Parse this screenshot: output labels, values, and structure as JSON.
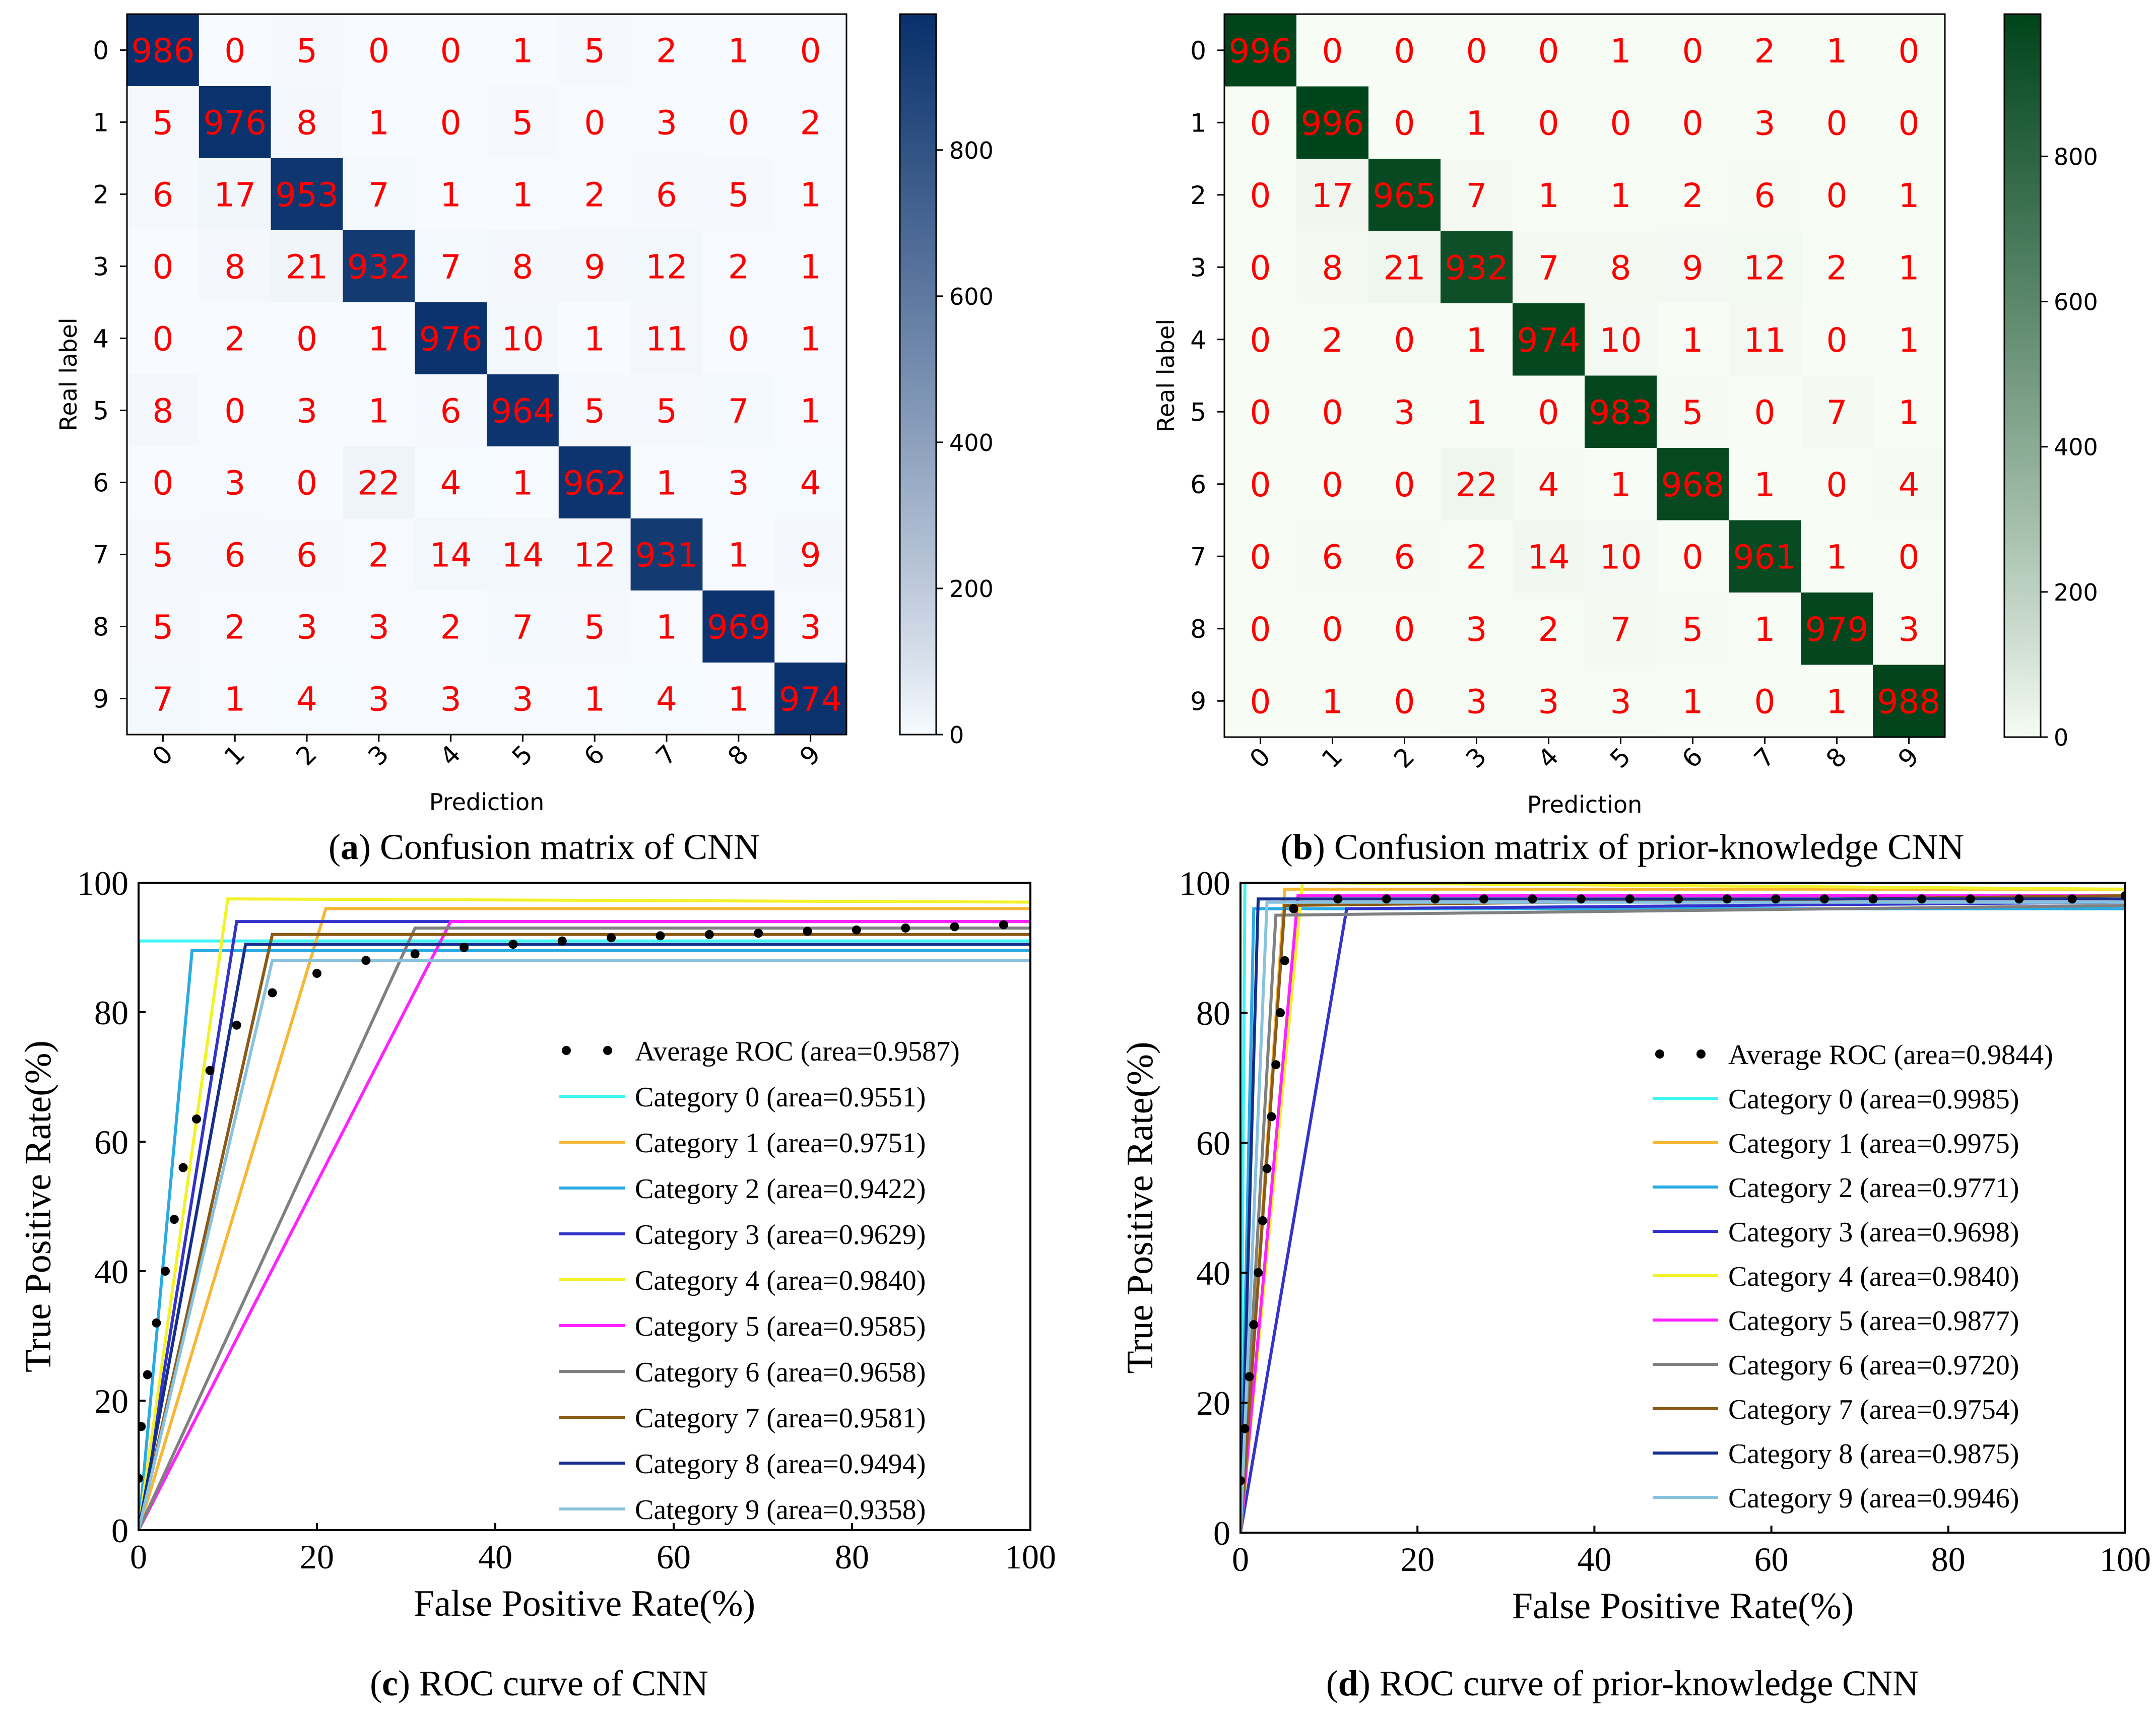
{
  "figure_captions": {
    "a": {
      "letter": "a",
      "text": " Confusion matrix of CNN"
    },
    "b": {
      "letter": "b",
      "text": " Confusion matrix of prior-knowledge CNN"
    },
    "c": {
      "letter": "c",
      "text": " ROC curve of CNN"
    },
    "d": {
      "letter": "d",
      "text": " ROC curve of prior-knowledge CNN"
    }
  },
  "chart_data": [
    {
      "id": "a",
      "type": "heatmap",
      "title": "Confusion matrix of CNN",
      "xlabel": "Prediction",
      "ylabel": "Real label",
      "categories": [
        "0",
        "1",
        "2",
        "3",
        "4",
        "5",
        "6",
        "7",
        "8",
        "9"
      ],
      "colormap": {
        "low": "#f7fbff",
        "high": "#08306b"
      },
      "colorbar_ticks": [
        0,
        200,
        400,
        600,
        800
      ],
      "vmin": 0,
      "vmax": 986,
      "cell_text_color": "#ff0000",
      "matrix": [
        [
          986,
          0,
          5,
          0,
          0,
          1,
          5,
          2,
          1,
          0
        ],
        [
          5,
          976,
          8,
          1,
          0,
          5,
          0,
          3,
          0,
          2
        ],
        [
          6,
          17,
          953,
          7,
          1,
          1,
          2,
          6,
          5,
          1
        ],
        [
          0,
          8,
          21,
          932,
          7,
          8,
          9,
          12,
          2,
          1
        ],
        [
          0,
          2,
          0,
          1,
          976,
          10,
          1,
          11,
          0,
          1
        ],
        [
          8,
          0,
          3,
          1,
          6,
          964,
          5,
          5,
          7,
          1
        ],
        [
          0,
          3,
          0,
          22,
          4,
          1,
          962,
          1,
          3,
          4
        ],
        [
          5,
          6,
          6,
          2,
          14,
          14,
          12,
          931,
          1,
          9
        ],
        [
          5,
          2,
          3,
          3,
          2,
          7,
          5,
          1,
          969,
          3
        ],
        [
          7,
          1,
          4,
          3,
          3,
          3,
          1,
          4,
          1,
          974
        ]
      ]
    },
    {
      "id": "b",
      "type": "heatmap",
      "title": "Confusion matrix of prior-knowledge CNN",
      "xlabel": "Prediction",
      "ylabel": "Real label",
      "categories": [
        "0",
        "1",
        "2",
        "3",
        "4",
        "5",
        "6",
        "7",
        "8",
        "9"
      ],
      "colormap": {
        "low": "#f7fcf5",
        "high": "#00441b"
      },
      "colorbar_ticks": [
        0,
        200,
        400,
        600,
        800
      ],
      "vmin": 0,
      "vmax": 996,
      "cell_text_color": "#ff0000",
      "matrix": [
        [
          996,
          0,
          0,
          0,
          0,
          1,
          0,
          2,
          1,
          0
        ],
        [
          0,
          996,
          0,
          1,
          0,
          0,
          0,
          3,
          0,
          0
        ],
        [
          0,
          17,
          965,
          7,
          1,
          1,
          2,
          6,
          0,
          1
        ],
        [
          0,
          8,
          21,
          932,
          7,
          8,
          9,
          12,
          2,
          1
        ],
        [
          0,
          2,
          0,
          1,
          974,
          10,
          1,
          11,
          0,
          1
        ],
        [
          0,
          0,
          3,
          1,
          0,
          983,
          5,
          0,
          7,
          1
        ],
        [
          0,
          0,
          0,
          22,
          4,
          1,
          968,
          1,
          0,
          4
        ],
        [
          0,
          6,
          6,
          2,
          14,
          10,
          0,
          961,
          1,
          0
        ],
        [
          0,
          0,
          0,
          3,
          2,
          7,
          5,
          1,
          979,
          3
        ],
        [
          0,
          1,
          0,
          3,
          3,
          3,
          1,
          0,
          1,
          988
        ]
      ]
    },
    {
      "id": "c",
      "type": "line",
      "title": "ROC curve of CNN",
      "xlabel": "False Positive Rate(%)",
      "ylabel": "True Positive Rate(%)",
      "xlim": [
        0,
        100
      ],
      "ylim": [
        0,
        100
      ],
      "ticks": [
        0,
        20,
        40,
        60,
        80,
        100
      ],
      "legend_location": "lower-right",
      "average": {
        "label": "Average ROC (area=0.9587)",
        "color": "#000000",
        "points": [
          [
            0,
            8
          ],
          [
            0.3,
            16
          ],
          [
            1,
            24
          ],
          [
            2,
            32
          ],
          [
            3,
            40
          ],
          [
            4,
            48
          ],
          [
            5,
            56
          ],
          [
            6.5,
            63.5
          ],
          [
            8,
            71
          ],
          [
            11,
            78
          ],
          [
            15,
            83
          ],
          [
            20,
            86
          ],
          [
            25.5,
            88
          ],
          [
            31,
            89
          ],
          [
            36.5,
            90
          ],
          [
            42,
            90.5
          ],
          [
            47.5,
            91
          ],
          [
            53,
            91.5
          ],
          [
            58.5,
            91.8
          ],
          [
            64,
            92
          ],
          [
            69.5,
            92.2
          ],
          [
            75,
            92.5
          ],
          [
            80.5,
            92.7
          ],
          [
            86,
            93
          ],
          [
            91.5,
            93.2
          ],
          [
            97,
            93.5
          ]
        ]
      },
      "series": [
        {
          "name": "Category 0",
          "label": "Category 0 (area=0.9551)",
          "color": "#3ff5f5",
          "points": [
            [
              0,
              0
            ],
            [
              0,
              91
            ],
            [
              100,
              91
            ]
          ]
        },
        {
          "name": "Category 1",
          "label": "Category 1 (area=0.9751)",
          "color": "#f7b733",
          "points": [
            [
              0,
              0
            ],
            [
              21,
              96
            ],
            [
              100,
              96
            ]
          ]
        },
        {
          "name": "Category 2",
          "label": "Category 2 (area=0.9422)",
          "color": "#29abe2",
          "points": [
            [
              0,
              0
            ],
            [
              6,
              89.5
            ],
            [
              100,
              89.5
            ]
          ]
        },
        {
          "name": "Category 3",
          "label": "Category 3 (area=0.9629)",
          "color": "#3333cc",
          "points": [
            [
              0,
              0
            ],
            [
              11,
              94
            ],
            [
              100,
              94
            ]
          ]
        },
        {
          "name": "Category 4",
          "label": "Category 4 (area=0.9840)",
          "color": "#f2f22a",
          "points": [
            [
              0,
              0
            ],
            [
              10,
              97.5
            ],
            [
              100,
              97
            ]
          ]
        },
        {
          "name": "Category 5",
          "label": "Category 5 (area=0.9585)",
          "color": "#ff22ff",
          "points": [
            [
              0,
              0
            ],
            [
              35,
              94
            ],
            [
              100,
              94
            ]
          ]
        },
        {
          "name": "Category 6",
          "label": "Category 6 (area=0.9658)",
          "color": "#808080",
          "points": [
            [
              0,
              0
            ],
            [
              31,
              93
            ],
            [
              100,
              93
            ]
          ]
        },
        {
          "name": "Category 7",
          "label": "Category 7 (area=0.9581)",
          "color": "#8b5a16",
          "points": [
            [
              0,
              0
            ],
            [
              15,
              92
            ],
            [
              100,
              92
            ]
          ]
        },
        {
          "name": "Category 8",
          "label": "Category 8 (area=0.9494)",
          "color": "#152d8c",
          "points": [
            [
              0,
              0
            ],
            [
              12,
              90.5
            ],
            [
              100,
              90.5
            ]
          ]
        },
        {
          "name": "Category 9",
          "label": "Category 9 (area=0.9358)",
          "color": "#88c3dd",
          "points": [
            [
              0,
              0
            ],
            [
              15,
              88
            ],
            [
              100,
              88
            ]
          ]
        }
      ]
    },
    {
      "id": "d",
      "type": "line",
      "title": "ROC curve of prior-knowledge CNN",
      "xlabel": "False Positive Rate(%)",
      "ylabel": "True Positive Rate(%)",
      "xlim": [
        0,
        100
      ],
      "ylim": [
        0,
        100
      ],
      "ticks": [
        0,
        20,
        40,
        60,
        80,
        100
      ],
      "legend_location": "lower-right",
      "average": {
        "label": "Average ROC (area=0.9844)",
        "color": "#000000",
        "points": [
          [
            0,
            8
          ],
          [
            0.5,
            16
          ],
          [
            1,
            24
          ],
          [
            1.5,
            32
          ],
          [
            2,
            40
          ],
          [
            2.5,
            48
          ],
          [
            3,
            56
          ],
          [
            3.5,
            64
          ],
          [
            4,
            72
          ],
          [
            4.5,
            80
          ],
          [
            5,
            88
          ],
          [
            6,
            96
          ],
          [
            11,
            97.5
          ],
          [
            16.5,
            97.5
          ],
          [
            22,
            97.5
          ],
          [
            27.5,
            97.5
          ],
          [
            33,
            97.5
          ],
          [
            38.5,
            97.5
          ],
          [
            44,
            97.5
          ],
          [
            49.5,
            97.5
          ],
          [
            55,
            97.5
          ],
          [
            60.5,
            97.5
          ],
          [
            66,
            97.5
          ],
          [
            71.5,
            97.5
          ],
          [
            77,
            97.5
          ],
          [
            82.5,
            97.5
          ],
          [
            88,
            97.5
          ],
          [
            94,
            97.5
          ],
          [
            100,
            98
          ]
        ]
      },
      "series": [
        {
          "name": "Category 0",
          "label": "Category 0 (area=0.9985)",
          "color": "#3ff5f5",
          "points": [
            [
              0,
              0
            ],
            [
              0.5,
              100
            ],
            [
              100,
              100
            ]
          ]
        },
        {
          "name": "Category 1",
          "label": "Category 1 (area=0.9975)",
          "color": "#f7b733",
          "points": [
            [
              0,
              0
            ],
            [
              5,
              99
            ],
            [
              100,
              99
            ]
          ]
        },
        {
          "name": "Category 2",
          "label": "Category 2 (area=0.9771)",
          "color": "#29abe2",
          "points": [
            [
              0,
              0
            ],
            [
              1.5,
              96
            ],
            [
              100,
              96
            ]
          ]
        },
        {
          "name": "Category 3",
          "label": "Category 3 (area=0.9698)",
          "color": "#3333cc",
          "points": [
            [
              0,
              0
            ],
            [
              12,
              96
            ],
            [
              100,
              97
            ]
          ]
        },
        {
          "name": "Category 4",
          "label": "Category 4 (area=0.9840)",
          "color": "#f2f22a",
          "points": [
            [
              0,
              0
            ],
            [
              7,
              100
            ],
            [
              100,
              99
            ]
          ]
        },
        {
          "name": "Category 5",
          "label": "Category 5 (area=0.9877)",
          "color": "#ff22ff",
          "points": [
            [
              0,
              0
            ],
            [
              6.5,
              98
            ],
            [
              100,
              98
            ]
          ]
        },
        {
          "name": "Category 6",
          "label": "Category 6 (area=0.9720)",
          "color": "#808080",
          "points": [
            [
              0,
              0
            ],
            [
              4,
              95
            ],
            [
              100,
              96.5
            ]
          ]
        },
        {
          "name": "Category 7",
          "label": "Category 7 (area=0.9754)",
          "color": "#8b5a16",
          "points": [
            [
              0,
              0
            ],
            [
              5,
              96.5
            ],
            [
              100,
              98
            ]
          ]
        },
        {
          "name": "Category 8",
          "label": "Category 8 (area=0.9875)",
          "color": "#152d8c",
          "points": [
            [
              0,
              0
            ],
            [
              2,
              97.5
            ],
            [
              100,
              97.5
            ]
          ]
        },
        {
          "name": "Category 9",
          "label": "Category 9 (area=0.9946)",
          "color": "#88c3dd",
          "points": [
            [
              0,
              0
            ],
            [
              3,
              97
            ],
            [
              100,
              97
            ]
          ]
        }
      ]
    }
  ]
}
